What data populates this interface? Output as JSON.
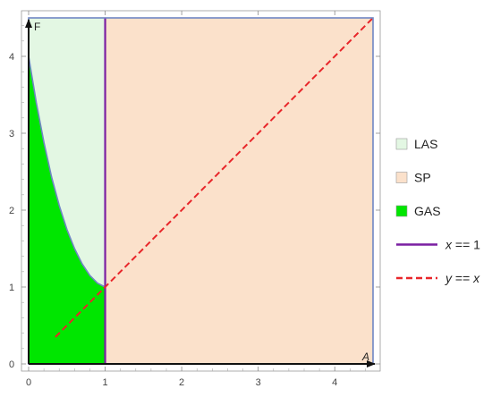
{
  "chart_data": {
    "type": "area",
    "xlabel": "A",
    "ylabel": "F",
    "xlim": [
      0,
      4.5
    ],
    "ylim": [
      0,
      4.5
    ],
    "x_ticks": [
      "0",
      "1",
      "2",
      "3",
      "4"
    ],
    "y_ticks": [
      "0",
      "1",
      "2",
      "3",
      "4"
    ],
    "regions": [
      {
        "name": "LAS",
        "color": "#e3f7e3",
        "description_points": [
          [
            0,
            4.0
          ],
          [
            0,
            4.5
          ],
          [
            1,
            4.5
          ],
          [
            1,
            1.0
          ]
        ]
      },
      {
        "name": "SP",
        "color": "#fbe1cb",
        "description_points": [
          [
            1,
            0
          ],
          [
            4.5,
            0
          ],
          [
            4.5,
            4.5
          ],
          [
            1,
            4.5
          ]
        ]
      },
      {
        "name": "GAS",
        "color": "#00e600",
        "description_points": [
          [
            0,
            0
          ],
          [
            1,
            0
          ],
          [
            1,
            1.0
          ],
          [
            0,
            4.0
          ]
        ]
      }
    ],
    "boundary_curve": {
      "x": [
        0,
        0.1,
        0.2,
        0.3,
        0.4,
        0.5,
        0.6,
        0.7,
        0.8,
        0.9,
        1.0
      ],
      "y": [
        4.0,
        3.4,
        2.88,
        2.43,
        2.06,
        1.75,
        1.5,
        1.3,
        1.15,
        1.05,
        1.0
      ],
      "color": "#6f86c4"
    },
    "lines": [
      {
        "name": "x == 1",
        "color": "#7a1fa2",
        "style": "solid",
        "x": [
          1,
          1
        ],
        "y": [
          0,
          4.5
        ]
      },
      {
        "name": "y == x",
        "color": "#e8262a",
        "style": "dashed",
        "x": [
          0.35,
          4.5
        ],
        "y": [
          0.35,
          4.5
        ]
      }
    ],
    "legend": {
      "placement": "right",
      "entries": [
        {
          "label": "LAS",
          "kind": "swatch",
          "color": "#e3f7e3"
        },
        {
          "label": "SP",
          "kind": "swatch",
          "color": "#fbe1cb"
        },
        {
          "label": "GAS",
          "kind": "swatch",
          "color": "#00e600"
        },
        {
          "label_var": "x",
          "label_rest": " == 1",
          "kind": "line",
          "color": "#7a1fa2",
          "style": "solid"
        },
        {
          "label_var": "y",
          "label_rest": " == ",
          "label_var2": "x",
          "kind": "line",
          "color": "#e8262a",
          "style": "dashed"
        }
      ]
    },
    "grid": false
  }
}
